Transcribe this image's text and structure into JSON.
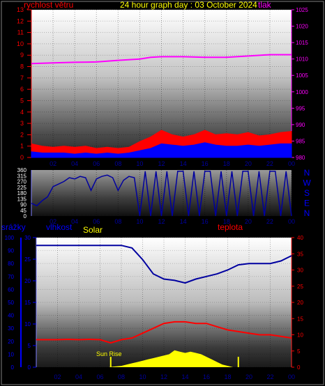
{
  "chart_data": [
    {
      "type": "line",
      "title": "24 hour graph day : 03 October 2024",
      "left_label": "rychlost větru",
      "right_label": "tlak",
      "x_ticks": [
        "02",
        "04",
        "06",
        "08",
        "10",
        "12",
        "14",
        "16",
        "18",
        "20",
        "22",
        "00"
      ],
      "y_left_ticks": [
        "0",
        "1",
        "2",
        "3",
        "4",
        "5",
        "6",
        "7",
        "8",
        "9",
        "10",
        "11",
        "12",
        "13"
      ],
      "y_left_range": [
        0,
        13
      ],
      "y_right_ticks": [
        "980",
        "985",
        "990",
        "995",
        "1000",
        "1005",
        "1010",
        "1015",
        "1020",
        "1025"
      ],
      "y_right_range": [
        980,
        1025
      ],
      "grid": true,
      "colors": {
        "pressure": "#ff00ff",
        "gust": "#ff0000",
        "speed": "#0000ff"
      },
      "series": [
        {
          "name": "tlak",
          "axis": "right",
          "x": [
            0,
            2,
            4,
            6,
            8,
            10,
            11,
            12,
            14,
            16,
            18,
            20,
            22,
            24
          ],
          "values": [
            1008.6,
            1008.8,
            1009.0,
            1009.1,
            1009.6,
            1010.0,
            1010.5,
            1010.7,
            1010.7,
            1010.5,
            1010.5,
            1010.9,
            1011.3,
            1011.3
          ]
        },
        {
          "name": "gust",
          "axis": "left",
          "x": [
            0,
            1,
            2,
            3,
            4,
            5,
            6,
            7,
            8,
            9,
            10,
            11,
            12,
            13,
            14,
            15,
            16,
            17,
            18,
            19,
            20,
            21,
            22,
            23,
            24
          ],
          "values": [
            1.2,
            1.0,
            0.9,
            1.0,
            0.9,
            1.0,
            0.8,
            0.9,
            0.8,
            0.9,
            1.4,
            1.8,
            2.4,
            2.0,
            1.8,
            2.0,
            2.4,
            2.0,
            2.1,
            2.0,
            2.2,
            1.9,
            2.0,
            2.2,
            2.3
          ]
        },
        {
          "name": "speed",
          "axis": "left",
          "x": [
            0,
            1,
            2,
            3,
            4,
            5,
            6,
            7,
            8,
            9,
            10,
            11,
            12,
            13,
            14,
            15,
            16,
            17,
            18,
            19,
            20,
            21,
            22,
            23,
            24
          ],
          "values": [
            0.5,
            0.4,
            0.4,
            0.4,
            0.3,
            0.4,
            0.3,
            0.4,
            0.3,
            0.4,
            0.6,
            0.8,
            1.2,
            1.1,
            1.0,
            1.1,
            1.3,
            1.1,
            1.0,
            1.0,
            1.1,
            1.0,
            1.1,
            1.2,
            1.2
          ]
        }
      ]
    },
    {
      "type": "line",
      "title": "",
      "x_ticks": [
        "02",
        "04",
        "06",
        "08",
        "10",
        "12",
        "14",
        "16",
        "18",
        "20",
        "22",
        "00"
      ],
      "y_left_ticks": [
        "0",
        "45",
        "90",
        "135",
        "180",
        "225",
        "270",
        "315",
        "360"
      ],
      "y_left_range": [
        0,
        360
      ],
      "direction_labels": [
        "N",
        "W",
        "S",
        "E",
        "N"
      ],
      "colors": {
        "direction": "#0000a0"
      },
      "series": [
        {
          "name": "direction",
          "x": [
            0,
            0.5,
            1,
            1.5,
            2,
            2.5,
            3,
            3.5,
            4,
            4.5,
            5,
            5.5,
            6,
            6.5,
            7,
            7.5,
            8,
            8.5,
            9,
            9.5,
            10,
            10.5,
            11,
            11.5,
            12,
            12.5,
            13,
            13.5,
            14,
            14.5,
            15,
            15.5,
            16,
            16.5,
            17,
            17.5,
            18,
            18.5,
            19,
            19.5,
            20,
            20.5,
            21,
            21.5,
            22,
            22.5,
            23,
            23.5,
            24
          ],
          "values": [
            100,
            80,
            120,
            150,
            230,
            250,
            270,
            300,
            290,
            310,
            300,
            200,
            290,
            310,
            320,
            300,
            200,
            280,
            310,
            300,
            0,
            350,
            0,
            350,
            0,
            350,
            0,
            350,
            350,
            0,
            350,
            0,
            350,
            350,
            0,
            350,
            0,
            350,
            0,
            350,
            350,
            0,
            350,
            0,
            350,
            350,
            0,
            350,
            0
          ]
        }
      ]
    },
    {
      "type": "line",
      "title": "",
      "labels": {
        "rain": "srážky",
        "humidity": "vlhkost",
        "solar": "Solar",
        "temperature": "teplota"
      },
      "sunrise_label": "Sun Rise",
      "x_ticks": [
        "02",
        "04",
        "06",
        "08",
        "10",
        "12",
        "14",
        "16",
        "18",
        "20",
        "22",
        "00"
      ],
      "y_rain_ticks": [
        "0",
        "10",
        "20",
        "30",
        "40",
        "50",
        "60",
        "70",
        "80",
        "90",
        "100"
      ],
      "y_rain_range": [
        0,
        100
      ],
      "y_humidity_ticks": [
        "0",
        "5",
        "10",
        "15",
        "20",
        "25",
        "30"
      ],
      "y_humidity_range": [
        0,
        30
      ],
      "y_temp_ticks": [
        "0",
        "5",
        "10",
        "15",
        "20",
        "25",
        "30",
        "35",
        "40"
      ],
      "y_temp_range": [
        0,
        40
      ],
      "colors": {
        "humidity": "#0000a0",
        "temperature": "#ff0000",
        "solar": "#ffff00",
        "rain": "#0000ff"
      },
      "series": [
        {
          "name": "vlhkost",
          "axis": "rain",
          "x": [
            0,
            1,
            2,
            3,
            4,
            5,
            6,
            7,
            8,
            9,
            10,
            11,
            12,
            13,
            14,
            15,
            16,
            17,
            18,
            19,
            20,
            21,
            22,
            23,
            24
          ],
          "values": [
            94,
            94,
            94,
            94,
            94,
            94,
            94,
            94,
            94,
            92,
            83,
            72,
            68,
            67,
            65,
            68,
            70,
            72,
            75,
            79,
            80,
            80,
            80,
            82,
            86
          ]
        },
        {
          "name": "teplota",
          "axis": "temp",
          "x": [
            0,
            1,
            2,
            3,
            4,
            5,
            6,
            7,
            8,
            9,
            10,
            11,
            12,
            13,
            14,
            15,
            16,
            17,
            18,
            19,
            20,
            21,
            22,
            23,
            24
          ],
          "values": [
            8.5,
            8.5,
            8.5,
            8.6,
            8.5,
            8.6,
            8.5,
            7.5,
            8.5,
            9.0,
            10.5,
            12.0,
            13.5,
            14.0,
            14.0,
            13.5,
            13.5,
            12.5,
            11.5,
            11.0,
            10.5,
            10.0,
            10.0,
            9.5,
            9.0
          ]
        },
        {
          "name": "Solar",
          "axis": "rain",
          "x": [
            6.8,
            7.3,
            8,
            8.5,
            9,
            9.5,
            10,
            10.5,
            11,
            11.5,
            12,
            12.5,
            13,
            13.5,
            14,
            14.5,
            15,
            15.5,
            16,
            16.5,
            17,
            17.5,
            18,
            18.5
          ],
          "values": [
            0,
            0.5,
            1,
            2,
            3,
            4,
            5,
            6,
            7,
            8,
            9,
            10,
            13,
            12,
            11,
            12,
            11,
            10,
            8,
            6,
            4,
            2,
            1,
            0
          ]
        }
      ]
    }
  ]
}
